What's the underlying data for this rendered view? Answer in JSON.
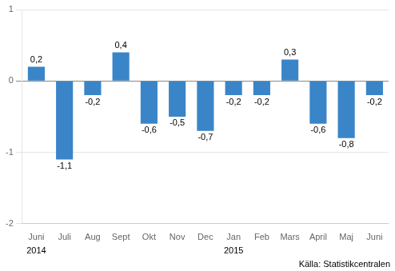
{
  "chart_data": {
    "type": "bar",
    "categories": [
      "Juni",
      "Juli",
      "Aug",
      "Sept",
      "Okt",
      "Nov",
      "Dec",
      "Jan",
      "Feb",
      "Mars",
      "April",
      "Maj",
      "Juni"
    ],
    "values": [
      0.2,
      -1.1,
      -0.2,
      0.4,
      -0.6,
      -0.5,
      -0.7,
      -0.2,
      -0.2,
      0.3,
      -0.6,
      -0.8,
      -0.2
    ],
    "value_labels": [
      "0,2",
      "-1,1",
      "-0,2",
      "0,4",
      "-0,6",
      "-0,5",
      "-0,7",
      "-0,2",
      "-0,2",
      "0,3",
      "-0,6",
      "-0,8",
      "-0,2"
    ],
    "data_labels": true,
    "color": "#3a85c8",
    "ylim": [
      -2,
      1
    ],
    "yticks": [
      -2,
      -1,
      0,
      1
    ],
    "grid": true,
    "annotations": [
      {
        "text": "2014",
        "category_index": 0
      },
      {
        "text": "2015",
        "category_index": 7
      },
      {
        "text": "Källa: Statistikcentralen"
      }
    ]
  }
}
